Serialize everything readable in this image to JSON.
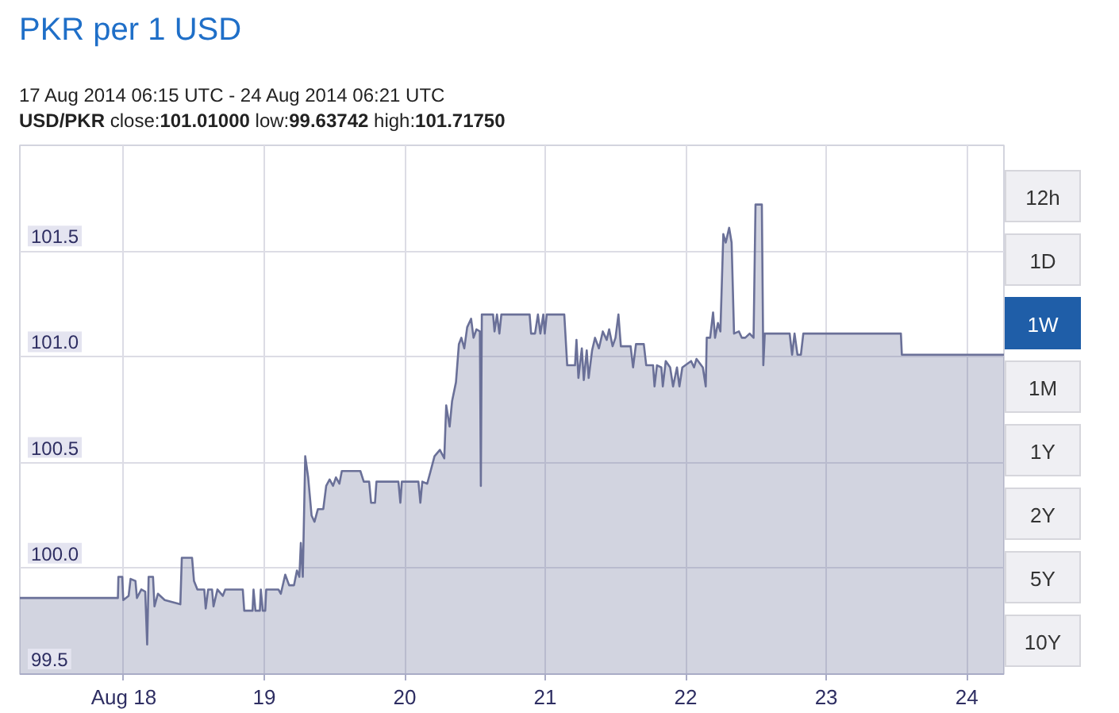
{
  "chart_data": {
    "type": "area",
    "title": "PKR per 1 USD",
    "subtitle": "17 Aug 2014 06:15 UTC - 24 Aug 2014 06:21 UTC",
    "annotations": [
      "USD/PKR close:101.01000 low:99.63742 high:101.71750",
      "12h",
      "1D",
      "1W",
      "1M",
      "1Y",
      "2Y",
      "5Y",
      "10Y"
    ],
    "x": [
      "2014-08-17T06:15",
      "2014-08-17T23:00",
      "2014-08-17T23:05",
      "2014-08-17T23:45",
      "2014-08-17T23:55",
      "2014-08-18T00:50",
      "2014-08-18T01:10",
      "2014-08-18T02:00",
      "2014-08-18T02:15",
      "2014-08-18T03:00",
      "2014-08-18T03:40",
      "2014-08-18T04:00",
      "2014-08-18T04:15",
      "2014-08-18T05:00",
      "2014-08-18T05:15",
      "2014-08-18T05:50",
      "2014-08-18T07:00",
      "2014-08-18T09:40",
      "2014-08-18T09:55",
      "2014-08-18T11:40",
      "2014-08-18T12:00",
      "2014-08-18T12:35",
      "2014-08-18T13:45",
      "2014-08-18T14:00",
      "2014-08-18T14:25",
      "2014-08-18T15:05",
      "2014-08-18T15:20",
      "2014-08-18T16:00",
      "2014-08-18T16:55",
      "2014-08-18T17:20",
      "2014-08-18T20:20",
      "2014-08-18T20:35",
      "2014-08-18T22:00",
      "2014-08-18T22:10",
      "2014-08-18T22:30",
      "2014-08-18T23:15",
      "2014-08-18T23:25",
      "2014-08-18T23:45",
      "2014-08-19T00:10",
      "2014-08-19T00:20",
      "2014-08-19T02:25",
      "2014-08-19T02:50",
      "2014-08-19T03:35",
      "2014-08-19T04:15",
      "2014-08-19T05:05",
      "2014-08-19T05:35",
      "2014-08-19T06:00",
      "2014-08-19T06:15",
      "2014-08-19T06:35",
      "2014-08-19T07:00",
      "2014-08-19T07:30",
      "2014-08-19T08:05",
      "2014-08-19T08:35",
      "2014-08-19T09:10",
      "2014-08-19T10:05",
      "2014-08-19T10:35",
      "2014-08-19T11:10",
      "2014-08-19T11:45",
      "2014-08-19T12:15",
      "2014-08-19T12:50",
      "2014-08-19T13:15",
      "2014-08-19T16:25",
      "2014-08-19T17:00",
      "2014-08-19T17:55",
      "2014-08-19T18:15",
      "2014-08-19T18:55",
      "2014-08-19T19:10",
      "2014-08-19T22:55",
      "2014-08-19T23:15",
      "2014-08-19T23:30",
      "2014-08-20T02:20",
      "2014-08-20T02:40",
      "2014-08-20T03:00",
      "2014-08-20T03:50",
      "2014-08-20T04:25",
      "2014-08-20T05:05",
      "2014-08-20T06:00",
      "2014-08-20T06:45",
      "2014-08-20T07:05",
      "2014-08-20T07:40",
      "2014-08-20T08:05",
      "2014-08-20T08:45",
      "2014-08-20T09:15",
      "2014-08-20T09:40",
      "2014-08-20T10:10",
      "2014-08-20T10:40",
      "2014-08-20T11:20",
      "2014-08-20T11:45",
      "2014-08-20T12:15",
      "2014-08-20T12:50",
      "2014-08-20T13:00",
      "2014-08-20T13:10",
      "2014-08-20T15:05",
      "2014-08-20T15:20",
      "2014-08-20T15:45",
      "2014-08-20T16:10",
      "2014-08-20T16:30",
      "2014-08-20T21:20",
      "2014-08-20T21:35",
      "2014-08-20T22:15",
      "2014-08-20T22:45",
      "2014-08-20T23:10",
      "2014-08-20T23:40",
      "2014-08-20T23:55",
      "2014-08-21T00:15",
      "2014-08-21T03:15",
      "2014-08-21T03:45",
      "2014-08-21T05:05",
      "2014-08-21T05:20",
      "2014-08-21T05:40",
      "2014-08-21T06:15",
      "2014-08-21T06:35",
      "2014-08-21T07:05",
      "2014-08-21T07:25",
      "2014-08-21T08:00",
      "2014-08-21T08:30",
      "2014-08-21T09:10",
      "2014-08-21T09:50",
      "2014-08-21T10:30",
      "2014-08-21T10:55",
      "2014-08-21T11:30",
      "2014-08-21T12:00",
      "2014-08-21T12:30",
      "2014-08-21T12:55",
      "2014-08-21T14:35",
      "2014-08-21T15:00",
      "2014-08-21T15:30",
      "2014-08-21T16:50",
      "2014-08-21T17:15",
      "2014-08-21T18:25",
      "2014-08-21T18:40",
      "2014-08-21T19:05",
      "2014-08-21T19:50",
      "2014-08-21T20:05",
      "2014-08-21T20:35",
      "2014-08-21T21:20",
      "2014-08-21T21:50",
      "2014-08-21T22:30",
      "2014-08-21T22:55",
      "2014-08-21T23:25",
      "2014-08-22T00:55",
      "2014-08-22T01:25",
      "2014-08-22T01:50",
      "2014-08-22T02:55",
      "2014-08-22T03:25",
      "2014-08-22T03:35",
      "2014-08-22T04:10",
      "2014-08-22T04:40",
      "2014-08-22T05:00",
      "2014-08-22T05:30",
      "2014-08-22T05:55",
      "2014-08-22T06:25",
      "2014-08-22T06:50",
      "2014-08-22T07:25",
      "2014-08-22T07:50",
      "2014-08-22T08:15",
      "2014-08-22T09:05",
      "2014-08-22T09:35",
      "2014-08-22T10:10",
      "2014-08-22T10:55",
      "2014-08-22T11:35",
      "2014-08-22T11:55",
      "2014-08-22T13:00",
      "2014-08-22T13:15",
      "2014-08-22T13:30",
      "2014-08-22T17:45",
      "2014-08-22T18:10",
      "2014-08-22T18:35",
      "2014-08-22T19:05",
      "2014-08-22T19:40",
      "2014-08-22T20:05",
      "2014-08-23T12:45",
      "2014-08-23T12:55",
      "2014-08-24T06:21"
    ],
    "series": [
      {
        "color": "#6a7098",
        "values": [
          99.86,
          99.86,
          99.96,
          99.96,
          99.85,
          99.87,
          99.95,
          99.94,
          99.86,
          99.9,
          99.89,
          99.64,
          99.96,
          99.96,
          99.82,
          99.88,
          99.85,
          99.83,
          100.05,
          100.05,
          99.94,
          99.9,
          99.9,
          99.81,
          99.9,
          99.9,
          99.82,
          99.9,
          99.87,
          99.9,
          99.9,
          99.8,
          99.8,
          99.9,
          99.8,
          99.8,
          99.9,
          99.8,
          99.8,
          99.9,
          99.9,
          99.88,
          99.97,
          99.92,
          99.92,
          99.99,
          99.96,
          100.12,
          99.96,
          100.53,
          100.43,
          100.25,
          100.22,
          100.28,
          100.28,
          100.39,
          100.42,
          100.39,
          100.43,
          100.4,
          100.46,
          100.46,
          100.41,
          100.41,
          100.31,
          100.31,
          100.41,
          100.41,
          100.31,
          100.41,
          100.41,
          100.31,
          100.41,
          100.4,
          100.46,
          100.53,
          100.56,
          100.52,
          100.77,
          100.67,
          100.79,
          100.88,
          101.06,
          101.09,
          101.04,
          101.14,
          101.18,
          101.09,
          101.13,
          101.12,
          100.39,
          101.2,
          101.2,
          101.12,
          101.2,
          101.11,
          101.2,
          101.2,
          101.11,
          101.11,
          101.2,
          101.11,
          101.2,
          101.11,
          101.2,
          101.2,
          100.96,
          100.96,
          101.08,
          100.9,
          101.04,
          100.89,
          101.03,
          100.9,
          101.03,
          101.09,
          101.04,
          101.12,
          101.08,
          101.13,
          101.05,
          101.09,
          101.2,
          101.05,
          101.05,
          100.95,
          101.06,
          101.06,
          100.96,
          100.96,
          100.86,
          100.96,
          100.95,
          100.86,
          100.98,
          100.95,
          100.86,
          100.95,
          100.86,
          100.95,
          100.98,
          100.95,
          100.99,
          100.95,
          100.86,
          101.09,
          101.09,
          101.21,
          101.09,
          101.16,
          101.12,
          101.58,
          101.54,
          101.61,
          101.54,
          101.11,
          101.12,
          101.09,
          101.09,
          101.11,
          101.09,
          101.72,
          101.72,
          100.96,
          101.11,
          101.11,
          101.01,
          101.11,
          101.01,
          101.01,
          101.11,
          101.11,
          101.01,
          101.01
        ]
      }
    ],
    "xlim": [
      "2014-08-17T06:15",
      "2014-08-24T06:21"
    ],
    "xticks": [
      {
        "value": "2014-08-18",
        "label": "Aug 18"
      },
      {
        "value": "2014-08-19",
        "label": "19"
      },
      {
        "value": "2014-08-20",
        "label": "20"
      },
      {
        "value": "2014-08-21",
        "label": "21"
      },
      {
        "value": "2014-08-22",
        "label": "22"
      },
      {
        "value": "2014-08-23",
        "label": "23"
      },
      {
        "value": "2014-08-24",
        "label": "24"
      }
    ],
    "ylim": [
      99.5,
      102.0
    ],
    "yticks": [
      99.5,
      {
        "value": 100,
        "label": "100.0"
      },
      100.5,
      {
        "value": 101,
        "label": "101.0"
      },
      101.5
    ],
    "grid": true
  }
}
